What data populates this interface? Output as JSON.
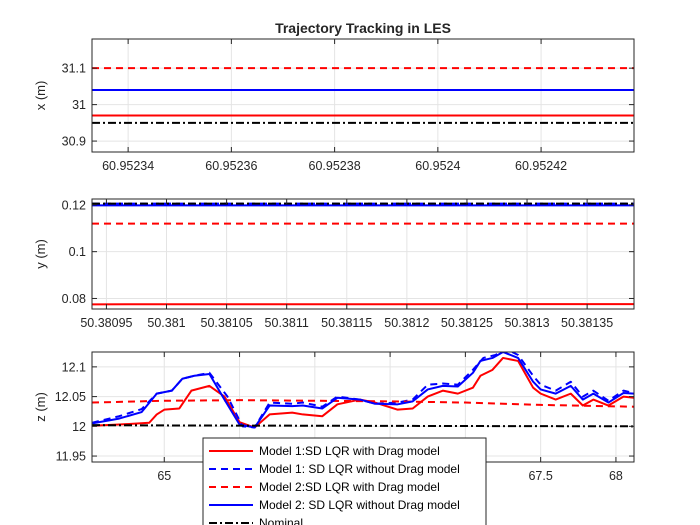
{
  "figure": {
    "title": "Trajectory Tracking in LES"
  },
  "colors": {
    "red": "#ff0000",
    "blue": "#0000ff",
    "black": "#000000",
    "grid": "#e4e4e4",
    "axis": "#262626"
  },
  "chart_data": [
    {
      "type": "line",
      "ylabel": "x (m)",
      "xlabel": "",
      "xlim": [
        60.952333,
        60.952438
      ],
      "ylim": [
        30.87,
        31.18
      ],
      "xticks": [
        60.95234,
        60.95236,
        60.95238,
        60.9524,
        60.95242
      ],
      "xtick_labels": [
        "60.95234",
        "60.95236",
        "60.95238",
        "60.9524",
        "60.95242"
      ],
      "yticks": [
        30.9,
        31,
        31.1
      ],
      "ytick_labels": [
        "30.9",
        "31",
        "31.1"
      ],
      "grid": true,
      "series": [
        {
          "name": "Model 1:SD LQR with Drag model",
          "color": "#ff0000",
          "dash": "solid",
          "x": [
            60.952333,
            60.952438
          ],
          "y": [
            30.97,
            30.97
          ]
        },
        {
          "name": "Model 1: SD LQR without Drag model",
          "color": "#0000ff",
          "dash": "dashed",
          "x": [
            60.952333,
            60.952438
          ],
          "y": [
            31.04,
            31.04
          ]
        },
        {
          "name": "Model 2:SD LQR with Drag model",
          "color": "#ff0000",
          "dash": "dashed",
          "x": [
            60.952333,
            60.952438
          ],
          "y": [
            31.1,
            31.1
          ]
        },
        {
          "name": "Model 2: SD LQR without Drag model",
          "color": "#0000ff",
          "dash": "solid",
          "x": [
            60.952333,
            60.952438
          ],
          "y": [
            31.04,
            31.04
          ]
        },
        {
          "name": "Nominal",
          "color": "#000000",
          "dash": "dashdot",
          "x": [
            60.952333,
            60.952438
          ],
          "y": [
            30.95,
            30.95
          ]
        }
      ]
    },
    {
      "type": "line",
      "ylabel": "y (m)",
      "xlabel": "",
      "xlim": [
        50.380938,
        50.381389
      ],
      "ylim": [
        0.0755,
        0.1225
      ],
      "xticks": [
        50.38095,
        50.381,
        50.38105,
        50.3811,
        50.38115,
        50.3812,
        50.38125,
        50.3813,
        50.38135
      ],
      "xtick_labels": [
        "50.38095",
        "50.381",
        "50.38105",
        "50.3811",
        "50.38115",
        "50.3812",
        "50.38125",
        "50.3813",
        "50.38135"
      ],
      "yticks": [
        0.08,
        0.1,
        0.12
      ],
      "ytick_labels": [
        "0.08",
        "0.1",
        "0.12"
      ],
      "grid": true,
      "series": [
        {
          "name": "Model 1:SD LQR with Drag model",
          "color": "#ff0000",
          "dash": "solid",
          "x": [
            50.380938,
            50.381389
          ],
          "y": [
            0.0775,
            0.0776
          ]
        },
        {
          "name": "Model 1: SD LQR without Drag model",
          "color": "#0000ff",
          "dash": "dashed",
          "x": [
            50.380938,
            50.381389
          ],
          "y": [
            0.1205,
            0.1205
          ]
        },
        {
          "name": "Model 2:SD LQR with Drag model",
          "color": "#ff0000",
          "dash": "dashed",
          "x": [
            50.380938,
            50.381389
          ],
          "y": [
            0.112,
            0.112
          ]
        },
        {
          "name": "Model 2: SD LQR without Drag model",
          "color": "#0000ff",
          "dash": "solid",
          "x": [
            50.380938,
            50.381389
          ],
          "y": [
            0.1198,
            0.1198
          ]
        },
        {
          "name": "Nominal",
          "color": "#000000",
          "dash": "dashdot",
          "x": [
            50.380938,
            50.381389
          ],
          "y": [
            0.1205,
            0.1205
          ]
        }
      ]
    },
    {
      "type": "line",
      "ylabel": "z (m)",
      "xlabel": "",
      "xlim": [
        64.52,
        68.12
      ],
      "ylim": [
        11.94,
        12.125
      ],
      "xticks": [
        65,
        65.5,
        66,
        66.5,
        67,
        67.5,
        68
      ],
      "xtick_labels": [
        "65",
        "",
        "",
        "",
        "",
        "67.5",
        "68"
      ],
      "yticks": [
        11.95,
        12,
        12.05,
        12.1
      ],
      "ytick_labels": [
        "11.95",
        "12",
        "12.05",
        "12.1"
      ],
      "grid": true,
      "legend": {
        "location": "bottom-center",
        "entries": [
          {
            "label": "Model 1:SD LQR with Drag model",
            "color": "#ff0000",
            "dash": "solid"
          },
          {
            "label": "Model 1: SD LQR without Drag model",
            "color": "#0000ff",
            "dash": "dashed"
          },
          {
            "label": "Model 2:SD LQR with Drag model",
            "color": "#ff0000",
            "dash": "dashed"
          },
          {
            "label": "Model 2: SD LQR without Drag model",
            "color": "#0000ff",
            "dash": "solid"
          },
          {
            "label": "Nominal",
            "color": "#000000",
            "dash": "dashdot"
          }
        ]
      },
      "series": [
        {
          "name": "Model 1:SD LQR with Drag model",
          "color": "#ff0000",
          "dash": "solid",
          "x": [
            64.52,
            64.7,
            64.9,
            64.95,
            65.0,
            65.1,
            65.18,
            65.3,
            65.4,
            65.5,
            65.6,
            65.7,
            65.85,
            65.92,
            66.05,
            66.15,
            66.3,
            66.4,
            66.55,
            66.65,
            66.75,
            66.85,
            66.95,
            67.05,
            67.1,
            67.18,
            67.25,
            67.35,
            67.45,
            67.5,
            67.6,
            67.7,
            67.78,
            67.85,
            67.95,
            68.05,
            68.12
          ],
          "y": [
            12.001,
            12.003,
            12.006,
            12.02,
            12.028,
            12.03,
            12.06,
            12.068,
            12.05,
            12.007,
            11.998,
            12.02,
            12.023,
            12.02,
            12.017,
            12.037,
            12.045,
            12.04,
            12.028,
            12.03,
            12.05,
            12.06,
            12.055,
            12.065,
            12.085,
            12.095,
            12.115,
            12.11,
            12.065,
            12.055,
            12.045,
            12.055,
            12.035,
            12.045,
            12.035,
            12.05,
            12.048
          ]
        },
        {
          "name": "Model 1: SD LQR without Drag model",
          "color": "#0000ff",
          "dash": "dashed",
          "x": [
            64.52,
            64.7,
            64.85,
            64.95,
            65.05,
            65.12,
            65.2,
            65.3,
            65.42,
            65.52,
            65.6,
            65.7,
            65.85,
            65.92,
            66.05,
            66.15,
            66.3,
            66.4,
            66.55,
            66.65,
            66.75,
            66.85,
            66.95,
            67.05,
            67.12,
            67.2,
            67.27,
            67.35,
            67.45,
            67.5,
            67.6,
            67.7,
            67.78,
            67.85,
            67.95,
            68.05,
            68.12
          ],
          "y": [
            12.006,
            12.017,
            12.029,
            12.055,
            12.06,
            12.08,
            12.085,
            12.09,
            12.05,
            12.0,
            11.998,
            12.04,
            12.038,
            12.04,
            12.033,
            12.05,
            12.045,
            12.038,
            12.04,
            12.045,
            12.07,
            12.072,
            12.07,
            12.095,
            12.115,
            12.12,
            12.13,
            12.12,
            12.085,
            12.07,
            12.06,
            12.075,
            12.05,
            12.06,
            12.043,
            12.06,
            12.056
          ]
        },
        {
          "name": "Model 2:SD LQR with Drag model",
          "color": "#ff0000",
          "dash": "dashed",
          "x": [
            64.52,
            65.0,
            65.5,
            66.0,
            66.5,
            67.0,
            67.5,
            68.12
          ],
          "y": [
            12.04,
            12.043,
            12.044,
            12.043,
            12.042,
            12.04,
            12.036,
            12.033
          ]
        },
        {
          "name": "Model 2: SD LQR without Drag model",
          "color": "#0000ff",
          "dash": "solid",
          "x": [
            64.52,
            64.7,
            64.85,
            64.95,
            65.05,
            65.12,
            65.2,
            65.3,
            65.4,
            65.5,
            65.6,
            65.7,
            65.85,
            65.92,
            66.05,
            66.15,
            66.3,
            66.4,
            66.55,
            66.65,
            66.75,
            66.85,
            66.95,
            67.05,
            67.1,
            67.18,
            67.25,
            67.35,
            67.45,
            67.5,
            67.6,
            67.7,
            67.78,
            67.85,
            67.95,
            68.05,
            68.12
          ],
          "y": [
            12.005,
            12.013,
            12.024,
            12.055,
            12.06,
            12.08,
            12.085,
            12.088,
            12.045,
            12.003,
            11.998,
            12.035,
            12.034,
            12.035,
            12.03,
            12.048,
            12.045,
            12.038,
            12.037,
            12.042,
            12.062,
            12.068,
            12.067,
            12.09,
            12.11,
            12.115,
            12.125,
            12.115,
            12.075,
            12.062,
            12.055,
            12.068,
            12.045,
            12.055,
            12.04,
            12.056,
            12.055
          ]
        },
        {
          "name": "Nominal",
          "color": "#000000",
          "dash": "dashdot",
          "x": [
            64.52,
            65.0,
            66.0,
            67.0,
            68.12
          ],
          "y": [
            12.002,
            12.0015,
            12.001,
            12.0005,
            12.0
          ]
        }
      ]
    }
  ]
}
